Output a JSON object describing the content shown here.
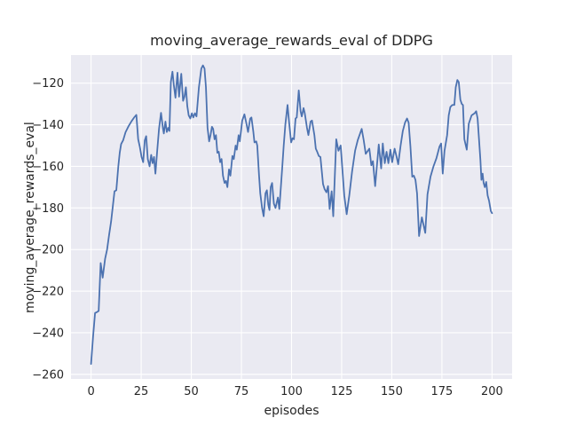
{
  "chart_data": {
    "type": "line",
    "title": "moving_average_rewards_eval of DDPG",
    "xlabel": "episodes",
    "ylabel": "moving_average_rewards_eval",
    "x_ticks": [
      0,
      25,
      50,
      75,
      100,
      125,
      150,
      175,
      200
    ],
    "y_ticks": [
      -120,
      -140,
      -160,
      -180,
      -200,
      -220,
      -240,
      -260
    ],
    "xlim": [
      -10,
      210
    ],
    "ylim": [
      -262.2,
      -106.5
    ],
    "grid": true,
    "legend_position": "none",
    "axes_background": "#eaeaf2",
    "grid_color": "#ffffff",
    "line_color": "#4c72b0",
    "text_color": "#262626",
    "series": [
      {
        "name": "moving_average_rewards_eval",
        "points": [
          [
            0,
            -255
          ],
          [
            1,
            -242
          ],
          [
            2,
            -230.5
          ],
          [
            3,
            -230
          ],
          [
            3.8,
            -229.5
          ],
          [
            4.8,
            -206.5
          ],
          [
            5.8,
            -213.5
          ],
          [
            7,
            -204.5
          ],
          [
            8,
            -200
          ],
          [
            9,
            -193
          ],
          [
            10,
            -186.5
          ],
          [
            11,
            -178
          ],
          [
            11.7,
            -172
          ],
          [
            12.6,
            -171.5
          ],
          [
            13.6,
            -160
          ],
          [
            14.3,
            -153.5
          ],
          [
            15,
            -149.3
          ],
          [
            16,
            -147.5
          ],
          [
            17.2,
            -143.6
          ],
          [
            18.7,
            -140.7
          ],
          [
            20.2,
            -138.3
          ],
          [
            21.5,
            -136.5
          ],
          [
            22.6,
            -135.3
          ],
          [
            23.5,
            -147
          ],
          [
            24.3,
            -150.5
          ],
          [
            25.2,
            -155.5
          ],
          [
            26,
            -158
          ],
          [
            26.8,
            -147.5
          ],
          [
            27.5,
            -145.5
          ],
          [
            28.3,
            -156.5
          ],
          [
            29.2,
            -160
          ],
          [
            30,
            -154.5
          ],
          [
            30.7,
            -158.5
          ],
          [
            31.4,
            -155.5
          ],
          [
            32.1,
            -163.5
          ],
          [
            33,
            -152.5
          ],
          [
            33.9,
            -142
          ],
          [
            34.9,
            -134.3
          ],
          [
            35.9,
            -142
          ],
          [
            36.3,
            -144.2
          ],
          [
            37.1,
            -138.5
          ],
          [
            37.8,
            -143.5
          ],
          [
            38.5,
            -141.5
          ],
          [
            39.1,
            -143
          ],
          [
            39.8,
            -119.5
          ],
          [
            40.6,
            -114.5
          ],
          [
            41.3,
            -121
          ],
          [
            42.1,
            -127
          ],
          [
            43.1,
            -115
          ],
          [
            43.9,
            -126.5
          ],
          [
            45,
            -115.5
          ],
          [
            45.9,
            -128.5
          ],
          [
            46.6,
            -126.5
          ],
          [
            47.3,
            -122
          ],
          [
            48,
            -131
          ],
          [
            48.7,
            -135.5
          ],
          [
            49.5,
            -137
          ],
          [
            50.3,
            -134.5
          ],
          [
            51,
            -136.5
          ],
          [
            51.8,
            -134.5
          ],
          [
            52.6,
            -136
          ],
          [
            53.8,
            -122
          ],
          [
            55,
            -113
          ],
          [
            55.8,
            -111.5
          ],
          [
            56.6,
            -113
          ],
          [
            57.3,
            -122
          ],
          [
            58.1,
            -141.5
          ],
          [
            58.9,
            -148
          ],
          [
            59.6,
            -145
          ],
          [
            60.3,
            -141
          ],
          [
            60.9,
            -142
          ],
          [
            61.6,
            -147
          ],
          [
            62.3,
            -145
          ],
          [
            63,
            -153.5
          ],
          [
            63.7,
            -153
          ],
          [
            64.4,
            -158
          ],
          [
            65.1,
            -156.5
          ],
          [
            65.8,
            -164.5
          ],
          [
            66.6,
            -168
          ],
          [
            67.3,
            -167
          ],
          [
            68,
            -170
          ],
          [
            68.8,
            -161.5
          ],
          [
            69.5,
            -164.5
          ],
          [
            70.5,
            -155
          ],
          [
            71.2,
            -156.5
          ],
          [
            72.1,
            -150
          ],
          [
            72.7,
            -152
          ],
          [
            73.6,
            -145
          ],
          [
            74.2,
            -148
          ],
          [
            75.4,
            -138
          ],
          [
            76.5,
            -135
          ],
          [
            77.5,
            -139.5
          ],
          [
            78.3,
            -143.5
          ],
          [
            79.4,
            -137
          ],
          [
            80,
            -136.5
          ],
          [
            80.9,
            -143
          ],
          [
            81.5,
            -148.5
          ],
          [
            82.4,
            -148
          ],
          [
            82.9,
            -150
          ],
          [
            83.8,
            -164.5
          ],
          [
            84.4,
            -173
          ],
          [
            85.3,
            -180
          ],
          [
            86.1,
            -184
          ],
          [
            87,
            -173
          ],
          [
            87.7,
            -171.5
          ],
          [
            88.4,
            -178.5
          ],
          [
            89,
            -181
          ],
          [
            89.6,
            -170
          ],
          [
            90.3,
            -168
          ],
          [
            91.2,
            -178
          ],
          [
            92,
            -180
          ],
          [
            93.2,
            -175
          ],
          [
            93.9,
            -180.5
          ],
          [
            95.4,
            -160
          ],
          [
            96.1,
            -150
          ],
          [
            96.9,
            -140
          ],
          [
            98,
            -130.5
          ],
          [
            98.8,
            -139
          ],
          [
            99.8,
            -148.5
          ],
          [
            100.5,
            -146.5
          ],
          [
            101.2,
            -147
          ],
          [
            102,
            -137
          ],
          [
            102.6,
            -136.5
          ],
          [
            103.6,
            -123.5
          ],
          [
            104.5,
            -133.5
          ],
          [
            105.1,
            -136
          ],
          [
            106,
            -132
          ],
          [
            106.6,
            -134.5
          ],
          [
            107.7,
            -141.5
          ],
          [
            108.4,
            -145
          ],
          [
            109.5,
            -138.5
          ],
          [
            110.2,
            -138
          ],
          [
            111.4,
            -145
          ],
          [
            112.1,
            -151.5
          ],
          [
            112.8,
            -153
          ],
          [
            113.6,
            -155
          ],
          [
            114.4,
            -155.5
          ],
          [
            115.7,
            -168.5
          ],
          [
            116.5,
            -171
          ],
          [
            117.4,
            -172.5
          ],
          [
            118.2,
            -169.5
          ],
          [
            119,
            -180.5
          ],
          [
            120,
            -172
          ],
          [
            120.8,
            -184
          ],
          [
            122.3,
            -147
          ],
          [
            123.4,
            -152.5
          ],
          [
            124.5,
            -150
          ],
          [
            126.3,
            -174
          ],
          [
            127.5,
            -183
          ],
          [
            128.8,
            -174
          ],
          [
            130.2,
            -162.5
          ],
          [
            131.7,
            -152.5
          ],
          [
            133,
            -147.5
          ],
          [
            135,
            -142
          ],
          [
            136,
            -147.5
          ],
          [
            137,
            -154
          ],
          [
            138.8,
            -151.5
          ],
          [
            139.8,
            -159.5
          ],
          [
            140.6,
            -157.5
          ],
          [
            141.7,
            -169.5
          ],
          [
            143.5,
            -149.5
          ],
          [
            144.7,
            -161
          ],
          [
            145.5,
            -149
          ],
          [
            146.5,
            -158.5
          ],
          [
            147.4,
            -153
          ],
          [
            148.3,
            -158.5
          ],
          [
            149.3,
            -152
          ],
          [
            150.2,
            -158
          ],
          [
            151.4,
            -151.5
          ],
          [
            152.3,
            -155
          ],
          [
            153.2,
            -159
          ],
          [
            154.4,
            -150
          ],
          [
            155.5,
            -143
          ],
          [
            156.6,
            -139
          ],
          [
            157.6,
            -137
          ],
          [
            158.4,
            -139
          ],
          [
            159.3,
            -150.5
          ],
          [
            160.2,
            -165
          ],
          [
            161,
            -164.5
          ],
          [
            161.8,
            -166.5
          ],
          [
            162.6,
            -173
          ],
          [
            163.6,
            -193.5
          ],
          [
            165,
            -184.5
          ],
          [
            166.7,
            -192
          ],
          [
            167.8,
            -173.5
          ],
          [
            169.3,
            -165
          ],
          [
            170.8,
            -160
          ],
          [
            172.3,
            -156
          ],
          [
            173.8,
            -150.5
          ],
          [
            174.6,
            -149
          ],
          [
            175.4,
            -163.5
          ],
          [
            176.3,
            -152.5
          ],
          [
            177.6,
            -145
          ],
          [
            178.4,
            -135.5
          ],
          [
            179.2,
            -131.5
          ],
          [
            180.2,
            -130.5
          ],
          [
            181.2,
            -130.5
          ],
          [
            181.9,
            -122
          ],
          [
            182.7,
            -118.5
          ],
          [
            183.4,
            -119.5
          ],
          [
            184.2,
            -128
          ],
          [
            184.9,
            -130
          ],
          [
            185.5,
            -130.5
          ],
          [
            186.2,
            -147
          ],
          [
            187.4,
            -152
          ],
          [
            188.4,
            -139.5
          ],
          [
            189.8,
            -135.5
          ],
          [
            191.3,
            -134.5
          ],
          [
            192.1,
            -133.5
          ],
          [
            192.8,
            -137
          ],
          [
            193.5,
            -147
          ],
          [
            194.2,
            -157
          ],
          [
            194.7,
            -166.5
          ],
          [
            195.3,
            -163.5
          ],
          [
            195.8,
            -168
          ],
          [
            196.4,
            -170
          ],
          [
            197.1,
            -167.5
          ],
          [
            197.8,
            -174
          ],
          [
            198.5,
            -176.5
          ],
          [
            199.4,
            -181.5
          ],
          [
            200,
            -182.5
          ]
        ]
      }
    ]
  }
}
